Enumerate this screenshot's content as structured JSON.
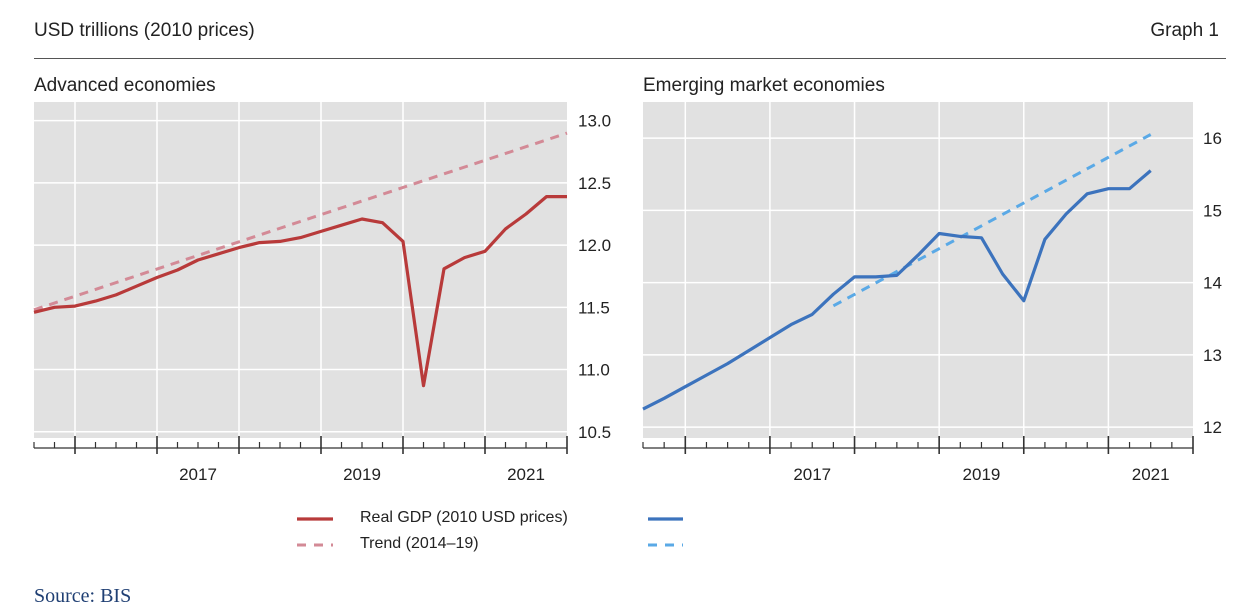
{
  "header": {
    "unit_label": "USD trillions (2010 prices)",
    "graph_label": "Graph 1"
  },
  "legend": {
    "real_gdp_label": "Real GDP (2010 USD prices)",
    "trend_label": "Trend (2014–19)"
  },
  "source": "Source: BIS",
  "colors": {
    "advanced_actual": "#b83a3a",
    "advanced_trend": "#d38a96",
    "emerging_actual": "#3c73bd",
    "emerging_trend": "#5aa9e6",
    "plot_bg": "#e1e1e1",
    "grid": "#ffffff"
  },
  "chart_data": [
    {
      "type": "line",
      "title": "Advanced economies",
      "x_range": [
        2015.5,
        2022.0
      ],
      "ylim": [
        10.45,
        13.15
      ],
      "yticks": [
        10.5,
        11.0,
        11.5,
        12.0,
        12.5,
        13.0
      ],
      "ytick_labels": [
        "10.5",
        "11.0",
        "11.5",
        "12.0",
        "12.5",
        "13.0"
      ],
      "xtick_labels": [
        {
          "x": 2017.5,
          "label": "2017"
        },
        {
          "x": 2019.5,
          "label": "2019"
        },
        {
          "x": 2021.5,
          "label": "2021"
        }
      ],
      "series": [
        {
          "name": "Real GDP (2010 USD prices)",
          "style": "solid",
          "points": [
            [
              2015.5,
              11.46
            ],
            [
              2015.75,
              11.5
            ],
            [
              2016.0,
              11.51
            ],
            [
              2016.25,
              11.55
            ],
            [
              2016.5,
              11.6
            ],
            [
              2016.75,
              11.67
            ],
            [
              2017.0,
              11.74
            ],
            [
              2017.25,
              11.8
            ],
            [
              2017.5,
              11.88
            ],
            [
              2017.75,
              11.93
            ],
            [
              2018.0,
              11.98
            ],
            [
              2018.25,
              12.02
            ],
            [
              2018.5,
              12.03
            ],
            [
              2018.75,
              12.06
            ],
            [
              2019.0,
              12.11
            ],
            [
              2019.25,
              12.16
            ],
            [
              2019.5,
              12.21
            ],
            [
              2019.75,
              12.18
            ],
            [
              2020.0,
              12.03
            ],
            [
              2020.25,
              10.87
            ],
            [
              2020.5,
              11.81
            ],
            [
              2020.75,
              11.9
            ],
            [
              2021.0,
              11.95
            ],
            [
              2021.25,
              12.13
            ],
            [
              2021.5,
              12.25
            ],
            [
              2021.75,
              12.39
            ],
            [
              2022.0,
              12.39
            ]
          ]
        },
        {
          "name": "Trend (2014–19)",
          "style": "dashed",
          "points": [
            [
              2015.5,
              11.48
            ],
            [
              2022.0,
              12.9
            ]
          ]
        }
      ]
    },
    {
      "type": "line",
      "title": "Emerging market economies",
      "x_range": [
        2015.5,
        2022.0
      ],
      "ylim": [
        11.85,
        16.5
      ],
      "yticks": [
        12,
        13,
        14,
        15,
        16
      ],
      "ytick_labels": [
        "12",
        "13",
        "14",
        "15",
        "16"
      ],
      "xtick_labels": [
        {
          "x": 2017.5,
          "label": "2017"
        },
        {
          "x": 2019.5,
          "label": "2019"
        },
        {
          "x": 2021.5,
          "label": "2021"
        }
      ],
      "series": [
        {
          "name": "Real GDP (2010 USD prices)",
          "style": "solid",
          "points": [
            [
              2015.5,
              12.25
            ],
            [
              2015.75,
              12.4
            ],
            [
              2016.0,
              12.56
            ],
            [
              2016.25,
              12.72
            ],
            [
              2016.5,
              12.88
            ],
            [
              2016.75,
              13.06
            ],
            [
              2017.0,
              13.24
            ],
            [
              2017.25,
              13.42
            ],
            [
              2017.5,
              13.56
            ],
            [
              2017.75,
              13.84
            ],
            [
              2018.0,
              14.08
            ],
            [
              2018.25,
              14.08
            ],
            [
              2018.5,
              14.1
            ],
            [
              2018.75,
              14.38
            ],
            [
              2019.0,
              14.68
            ],
            [
              2019.25,
              14.64
            ],
            [
              2019.5,
              14.62
            ],
            [
              2019.75,
              14.12
            ],
            [
              2020.0,
              13.75
            ],
            [
              2020.25,
              14.6
            ],
            [
              2020.5,
              14.95
            ],
            [
              2020.75,
              15.23
            ],
            [
              2021.0,
              15.3
            ],
            [
              2021.25,
              15.3
            ],
            [
              2021.5,
              15.55
            ]
          ]
        },
        {
          "name": "Trend (2014–19)",
          "style": "dashed",
          "points": [
            [
              2017.75,
              13.68
            ],
            [
              2021.5,
              16.05
            ]
          ]
        }
      ]
    }
  ]
}
